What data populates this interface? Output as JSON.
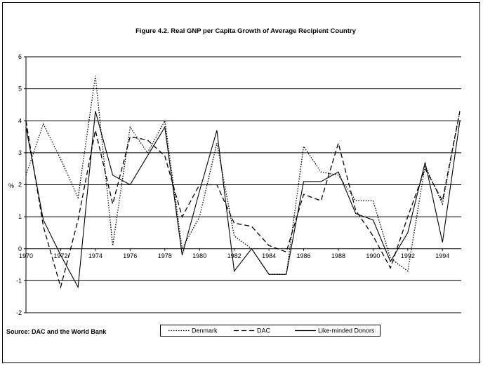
{
  "chart_data": {
    "type": "line",
    "title": "Figure 4.2.  Real GNP per Capita Growth of Average Recipient Country",
    "y_label": "%",
    "source": "Source: DAC and the World Bank",
    "x": [
      1970,
      1971,
      1972,
      1973,
      1974,
      1975,
      1976,
      1977,
      1978,
      1979,
      1980,
      1981,
      1982,
      1983,
      1984,
      1985,
      1986,
      1987,
      1988,
      1989,
      1990,
      1991,
      1992,
      1993,
      1994,
      1995
    ],
    "series": [
      {
        "name": "Denmark",
        "color": "#000000",
        "style": "dotted",
        "values": [
          2.3,
          3.9,
          2.8,
          1.6,
          5.4,
          0.1,
          3.8,
          3.0,
          4.0,
          0.0,
          1.0,
          3.3,
          0.4,
          0.0,
          -0.8,
          -0.8,
          3.2,
          2.4,
          2.3,
          1.5,
          1.5,
          -0.3,
          -0.7,
          2.6,
          1.4,
          4.3
        ]
      },
      {
        "name": "DAC",
        "color": "#000000",
        "style": "dashed",
        "values": [
          4.0,
          0.7,
          -1.2,
          0.9,
          3.7,
          1.4,
          3.5,
          3.4,
          2.9,
          1.0,
          2.0,
          2.0,
          0.8,
          0.7,
          0.1,
          -0.1,
          1.7,
          1.5,
          3.3,
          1.2,
          0.4,
          -0.6,
          1.0,
          2.5,
          1.5,
          4.3
        ]
      },
      {
        "name": "Like-minded Donors",
        "color": "#000000",
        "style": "solid",
        "values": [
          3.8,
          0.9,
          -0.2,
          -1.2,
          4.3,
          2.3,
          2.0,
          2.9,
          3.8,
          -0.2,
          1.8,
          3.7,
          -0.7,
          0.0,
          -0.8,
          -0.8,
          2.1,
          2.1,
          2.4,
          1.1,
          0.9,
          -0.4,
          0.5,
          2.7,
          0.2,
          4.0
        ]
      }
    ],
    "xlim": [
      1970,
      1995
    ],
    "xticks": [
      1970,
      1972,
      1974,
      1976,
      1978,
      1980,
      1982,
      1984,
      1986,
      1988,
      1990,
      1992,
      1994
    ],
    "ylim": [
      -2,
      6
    ],
    "yticks": [
      -2,
      -1,
      0,
      1,
      2,
      3,
      4,
      5,
      6
    ],
    "grid": true
  }
}
